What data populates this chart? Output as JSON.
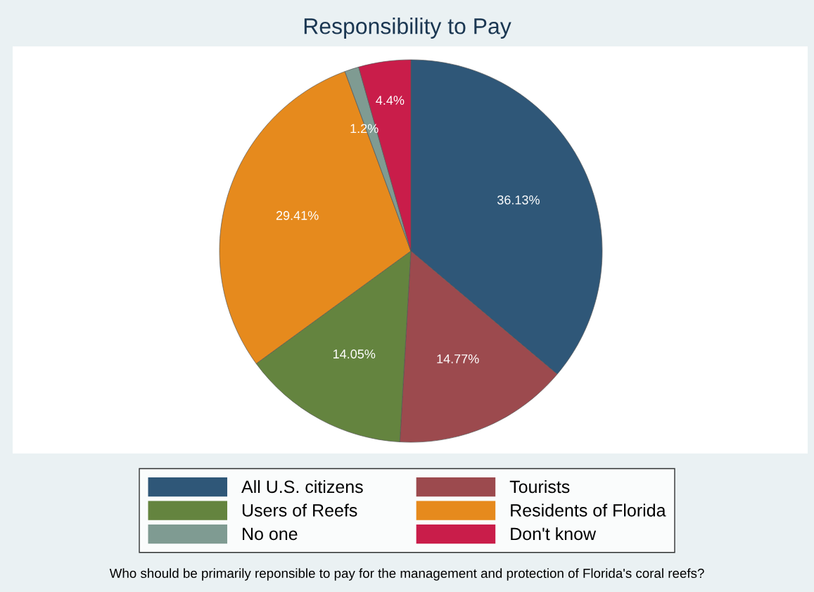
{
  "chart_data": {
    "type": "pie",
    "title": "Responsibility to Pay",
    "categories": [
      "All U.S. citizens",
      "Tourists",
      "Users of Reefs",
      "Residents of Florida",
      "No one",
      "Don't know"
    ],
    "values": [
      36.13,
      14.77,
      14.05,
      29.41,
      1.2,
      4.4
    ],
    "value_labels": [
      "36.13%",
      "14.77%",
      "14.05%",
      "29.41%",
      "1.2%",
      "4.4%"
    ],
    "colors": [
      "#2f5778",
      "#9c4a4e",
      "#64843f",
      "#e68a1d",
      "#7f9b92",
      "#c91d4a"
    ],
    "legend": "bottom",
    "annotations": [
      "Who should be primarily reponsible to pay for the management and protection of Florida's coral reefs?"
    ]
  }
}
